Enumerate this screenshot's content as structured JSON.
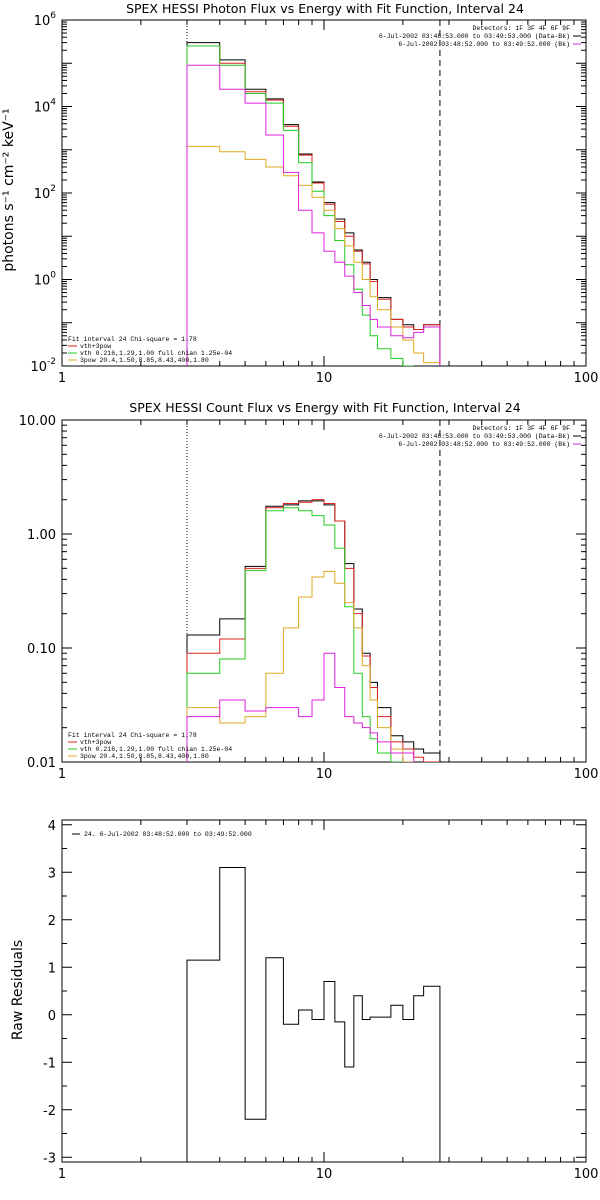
{
  "chart_data": [
    {
      "type": "line",
      "title": "SPEX HESSI Photon Flux vs Energy with Fit Function, Interval 24",
      "ylabel": "photons s⁻¹ cm⁻² keV⁻¹",
      "xscale": "log",
      "yscale": "log",
      "xlim": [
        1,
        100
      ],
      "ylim": [
        0.01,
        1000000
      ],
      "xticks": [
        {
          "v": 1,
          "t": "1"
        },
        {
          "v": 10,
          "t": "10"
        },
        {
          "v": 100,
          "t": "100"
        }
      ],
      "yticks": [
        {
          "v": 0.01,
          "t": "10",
          "e": "-2"
        },
        {
          "v": 1,
          "t": "10",
          "e": "0"
        },
        {
          "v": 100,
          "t": "10",
          "e": "2"
        },
        {
          "v": 10000,
          "t": "10",
          "e": "4"
        },
        {
          "v": 1000000,
          "t": "10",
          "e": "6"
        }
      ],
      "vlines": [
        {
          "x": 3.0,
          "style": "dotted"
        },
        {
          "x": 27.7,
          "style": "dashed"
        }
      ],
      "edges": [
        3.0,
        4.0,
        5.0,
        6.0,
        7.0,
        8.0,
        9.0,
        10.0,
        11.0,
        12.0,
        13.0,
        14.0,
        15.0,
        16.0,
        18.0,
        20.0,
        22.0,
        24.0,
        27.7
      ],
      "series": [
        {
          "key": "data",
          "color": "#000000",
          "values": [
            300000,
            120000,
            25000,
            15000,
            3800,
            800,
            180,
            60,
            25,
            12,
            4.8,
            2.5,
            1.0,
            0.38,
            0.12,
            0.09,
            0.07,
            0.09
          ]
        },
        {
          "key": "total",
          "name": "vth+3pow",
          "color": "#dd2222",
          "values": [
            250000,
            100000,
            22000,
            14000,
            3500,
            750,
            170,
            55,
            22,
            10,
            4.5,
            2.3,
            0.9,
            0.35,
            0.12,
            0.08,
            0.07,
            0.09
          ]
        },
        {
          "key": "vth",
          "name": "vth 0.216,1.29,1.00  full chian 1.25e-04",
          "color": "#22cc22",
          "values": [
            250000,
            90000,
            20000,
            12000,
            2800,
            500,
            110,
            30,
            8,
            2.2,
            0.6,
            0.15,
            0.05,
            0.025,
            0.015,
            0.01
          ]
        },
        {
          "key": "pow",
          "name": "3pow 20.4,1.50,8.85,8.43,400,1.80",
          "color": "#ddaa22",
          "values": [
            1200,
            900,
            600,
            400,
            250,
            150,
            80,
            40,
            15,
            6,
            2.5,
            1.0,
            0.4,
            0.2,
            0.08,
            0.04,
            0.02,
            0.012
          ]
        },
        {
          "key": "bkg",
          "color": "#dd22dd",
          "values": [
            90000,
            25000,
            12000,
            2200,
            300,
            40,
            12,
            4.5,
            2.5,
            1.2,
            0.5,
            0.25,
            0.12,
            0.08,
            0.05,
            0.045,
            0.06,
            0.08
          ]
        }
      ],
      "legend_block": [
        {
          "text": "Detectors: 1F 3F 4F 6F 9F"
        },
        {
          "text": "6-Jul-2002 03:48:53.000 to 03:49:53.000 (Data-Bk)",
          "color": "#000000"
        },
        {
          "text": "6-Jul-2002 03:48:52.000 to 03:49:52.000 (Bk)",
          "color": "#dd22dd"
        }
      ],
      "fit_title": "Fit interval 24   Chi-square = 1.78"
    },
    {
      "type": "line",
      "title": "SPEX HESSI Count Flux vs Energy with Fit Function, Interval 24",
      "xscale": "log",
      "yscale": "log",
      "xlim": [
        1,
        100
      ],
      "ylim": [
        0.01,
        10
      ],
      "xticks": [
        {
          "v": 1,
          "t": "1"
        },
        {
          "v": 10,
          "t": "10"
        },
        {
          "v": 100,
          "t": "100"
        }
      ],
      "yticks": [
        {
          "v": 0.01,
          "t": "0.01"
        },
        {
          "v": 0.1,
          "t": "0.10"
        },
        {
          "v": 1,
          "t": "1.00"
        },
        {
          "v": 10,
          "t": "10.00"
        }
      ],
      "vlines": [
        {
          "x": 3.0,
          "style": "dotted"
        },
        {
          "x": 27.7,
          "style": "dashed"
        }
      ],
      "edges": [
        3.0,
        4.0,
        5.0,
        6.0,
        7.0,
        8.0,
        9.0,
        10.0,
        11.0,
        12.0,
        13.0,
        14.0,
        15.0,
        16.0,
        18.0,
        20.0,
        22.0,
        24.0,
        27.7
      ],
      "series": [
        {
          "key": "data",
          "color": "#000000",
          "values": [
            0.13,
            0.18,
            0.52,
            1.75,
            1.8,
            1.95,
            1.95,
            1.8,
            1.3,
            0.55,
            0.22,
            0.09,
            0.05,
            0.03,
            0.017,
            0.015,
            0.013,
            0.012
          ]
        },
        {
          "key": "total",
          "color": "#dd2222",
          "values": [
            0.09,
            0.12,
            0.5,
            1.7,
            1.85,
            1.9,
            2.0,
            1.85,
            1.3,
            0.5,
            0.2,
            0.085,
            0.045,
            0.025,
            0.015,
            0.013,
            0.011,
            0.01
          ]
        },
        {
          "key": "vth",
          "color": "#22cc22",
          "values": [
            0.06,
            0.08,
            0.48,
            1.6,
            1.7,
            1.6,
            1.45,
            1.2,
            0.75,
            0.23,
            0.06,
            0.025,
            0.016,
            0.012,
            0.01
          ]
        },
        {
          "key": "pow",
          "color": "#ddaa22",
          "values": [
            0.03,
            0.022,
            0.025,
            0.06,
            0.15,
            0.28,
            0.42,
            0.47,
            0.37,
            0.25,
            0.15,
            0.07,
            0.035,
            0.02,
            0.013,
            0.01
          ]
        },
        {
          "key": "bkg",
          "color": "#dd22dd",
          "values": [
            0.025,
            0.035,
            0.028,
            0.03,
            0.03,
            0.025,
            0.035,
            0.09,
            0.045,
            0.025,
            0.022,
            0.02,
            0.018,
            0.015,
            0.012,
            0.012
          ]
        }
      ],
      "legend_block": [
        {
          "text": "Detectors: 1F 3F 4F 6F 9F"
        },
        {
          "text": "6-Jul-2002 03:48:53.000 to 03:49:53.000 (Data-Bk)",
          "color": "#000000"
        },
        {
          "text": "6-Jul-2002 03:48:52.000 to 03:49:52.000 (Bk)",
          "color": "#dd22dd"
        }
      ],
      "fit_legend": [
        {
          "text": "Fit interval 24   Chi-square = 1.78"
        },
        {
          "text": "vth+3pow",
          "color": "#dd2222"
        },
        {
          "text": "vth 0.216,1.29,1.00  full chian 1.25e-04",
          "color": "#22cc22"
        },
        {
          "text": "3pow 20.4,1.50,8.85,8.43,400,1.80",
          "color": "#ddaa22"
        }
      ]
    },
    {
      "type": "line",
      "ylabel": "Raw Residuals",
      "xscale": "log",
      "yscale": "linear",
      "xlim": [
        1,
        100
      ],
      "ylim": [
        -3.1,
        4.1
      ],
      "xticks": [
        {
          "v": 1,
          "t": "1"
        },
        {
          "v": 10,
          "t": "10"
        },
        {
          "v": 100,
          "t": "100"
        }
      ],
      "yticks": [
        {
          "v": -3,
          "t": "-3"
        },
        {
          "v": -2,
          "t": "-2"
        },
        {
          "v": -1,
          "t": "-1"
        },
        {
          "v": 0,
          "t": "0"
        },
        {
          "v": 1,
          "t": "1"
        },
        {
          "v": 2,
          "t": "2"
        },
        {
          "v": 3,
          "t": "3"
        },
        {
          "v": 4,
          "t": "4"
        }
      ],
      "edges": [
        3.0,
        4.0,
        5.0,
        6.0,
        7.0,
        8.0,
        9.0,
        10.0,
        11.0,
        12.0,
        13.0,
        14.0,
        15.0,
        16.0,
        18.0,
        20.0,
        22.0,
        24.0,
        27.7
      ],
      "series": [
        {
          "key": "resid",
          "color": "#000000",
          "values": [
            1.15,
            3.1,
            -2.2,
            1.2,
            -0.2,
            0.1,
            -0.1,
            0.7,
            -0.15,
            -1.1,
            0.4,
            -0.1,
            -0.05,
            -0.05,
            0.2,
            -0.1,
            0.4,
            0.6
          ]
        }
      ],
      "legend_block": [
        {
          "text": "24.  6-Jul-2002 03:48:52.000 to 03:49:52.000",
          "color": "#000000"
        }
      ]
    }
  ]
}
